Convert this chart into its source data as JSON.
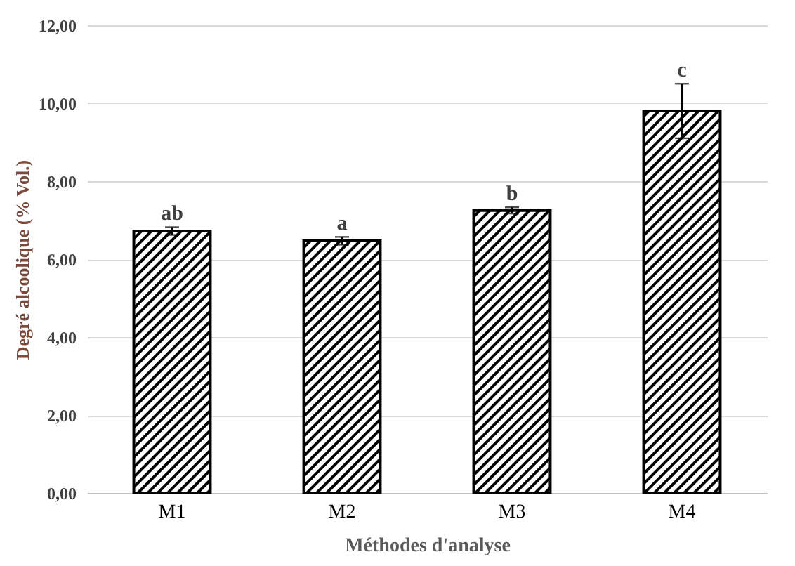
{
  "chart_data": {
    "type": "bar",
    "xlabel": "Méthodes d'analyse",
    "ylabel": "Degré alcoolique (% Vol.)",
    "categories": [
      "M1",
      "M2",
      "M3",
      "M4"
    ],
    "values": [
      6.72,
      6.47,
      7.25,
      9.8
    ],
    "errors": [
      0.1,
      0.1,
      0.08,
      0.7
    ],
    "color": "#000000",
    "ylim": [
      0,
      12
    ],
    "yticks": [
      {
        "value": 0,
        "label": "0,00"
      },
      {
        "value": 2,
        "label": "2,00"
      },
      {
        "value": 4,
        "label": "4,00"
      },
      {
        "value": 6,
        "label": "6,00"
      },
      {
        "value": 8,
        "label": "8,00"
      },
      {
        "value": 10,
        "label": "10,00"
      },
      {
        "value": 12,
        "label": "12,00"
      }
    ],
    "grid": "y",
    "annotations": [
      {
        "text": "ab",
        "x": "M1",
        "y": 6.82
      },
      {
        "text": "a",
        "x": "M2",
        "y": 6.57
      },
      {
        "text": "b",
        "x": "M3",
        "y": 7.33
      },
      {
        "text": "c",
        "x": "M4",
        "y": 10.5
      }
    ]
  }
}
